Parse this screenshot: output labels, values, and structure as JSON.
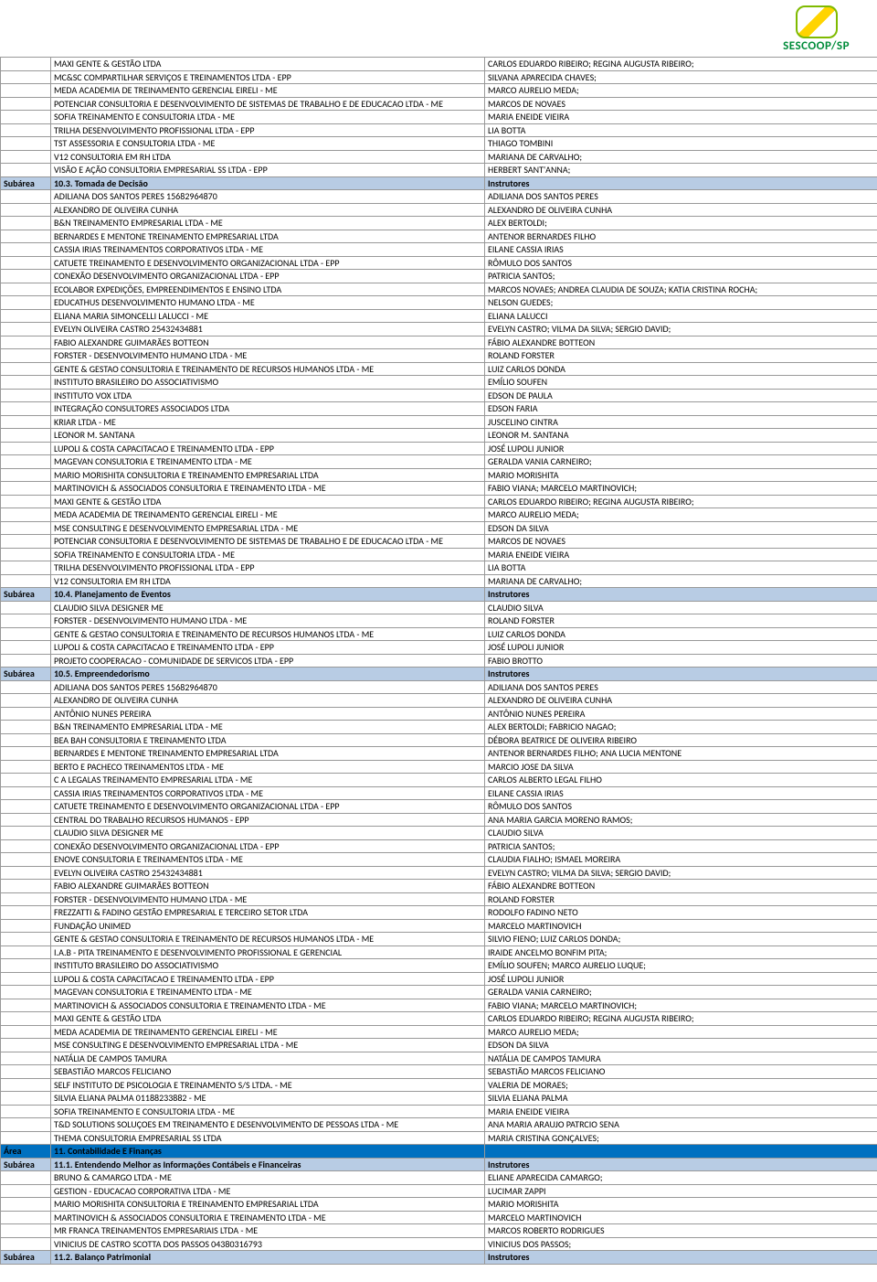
{
  "logo_text": "SESCOOP/SP",
  "colors": {
    "subarea_bg": "#b8cce4",
    "area_bg": "#0070c0",
    "border": "#999999"
  },
  "labels": {
    "subarea": "Subárea",
    "area": "Área",
    "instrutores": "Instrutores"
  },
  "sections": [
    {
      "type": "rows",
      "rows": [
        [
          "MAXI GENTE & GESTÃO LTDA",
          "CARLOS EDUARDO RIBEIRO; REGINA AUGUSTA RIBEIRO;"
        ],
        [
          "MC&SC COMPARTILHAR SERVIÇOS E TREINAMENTOS LTDA - EPP",
          "SILVANA APARECIDA CHAVES;"
        ],
        [
          "MEDA ACADEMIA DE TREINAMENTO GERENCIAL EIRELI - ME",
          "MARCO AURELIO MEDA;"
        ],
        [
          "POTENCIAR CONSULTORIA E DESENVOLVIMENTO DE SISTEMAS DE TRABALHO E DE EDUCACAO LTDA - ME",
          "MARCOS DE NOVAES"
        ],
        [
          "SOFIA TREINAMENTO E CONSULTORIA LTDA - ME",
          "MARIA ENEIDE VIEIRA"
        ],
        [
          "TRILHA DESENVOLVIMENTO PROFISSIONAL LTDA - EPP",
          "LIA BOTTA"
        ],
        [
          "TST ASSESSORIA E CONSULTORIA LTDA - ME",
          "THIAGO TOMBINI"
        ],
        [
          "V12 CONSULTORIA EM RH LTDA",
          "MARIANA DE CARVALHO;"
        ],
        [
          "VISÃO E AÇÃO CONSULTORIA EMPRESARIAL SS LTDA - EPP",
          "HERBERT SANT'ANNA;"
        ]
      ]
    },
    {
      "type": "subarea",
      "title": "10.3. Tomada de Decisão",
      "rows": [
        [
          "ADILIANA DOS SANTOS PERES 15682964870",
          "ADILIANA DOS SANTOS PERES"
        ],
        [
          "ALEXANDRO DE OLIVEIRA CUNHA",
          "ALEXANDRO DE OLIVEIRA CUNHA"
        ],
        [
          "B&N TREINAMENTO EMPRESARIAL LTDA - ME",
          "ALEX BERTOLDI;"
        ],
        [
          "BERNARDES E MENTONE TREINAMENTO EMPRESARIAL LTDA",
          "ANTENOR BERNARDES FILHO"
        ],
        [
          "CASSIA IRIAS TREINAMENTOS CORPORATIVOS LTDA - ME",
          "EILANE CASSIA IRIAS"
        ],
        [
          "CATUETE TREINAMENTO E DESENVOLVIMENTO ORGANIZACIONAL LTDA - EPP",
          "RÔMULO DOS SANTOS"
        ],
        [
          "CONEXÃO DESENVOLVIMENTO ORGANIZACIONAL LTDA - EPP",
          "PATRICIA SANTOS;"
        ],
        [
          "ECOLABOR EXPEDIÇÕES, EMPREENDIMENTOS E ENSINO LTDA",
          "MARCOS NOVAES; ANDREA CLAUDIA DE SOUZA; KATIA CRISTINA ROCHA;"
        ],
        [
          "EDUCATHUS DESENVOLVIMENTO HUMANO LTDA - ME",
          "NELSON GUEDES;"
        ],
        [
          "ELIANA MARIA SIMONCELLI LALUCCI - ME",
          "ELIANA LALUCCI"
        ],
        [
          "EVELYN OLIVEIRA CASTRO 25432434881",
          "EVELYN CASTRO; VILMA DA SILVA; SERGIO DAVID;"
        ],
        [
          "FABIO ALEXANDRE GUIMARÃES BOTTEON",
          "FÁBIO ALEXANDRE BOTTEON"
        ],
        [
          "FORSTER - DESENVOLVIMENTO HUMANO LTDA - ME",
          "ROLAND FORSTER"
        ],
        [
          "GENTE & GESTAO CONSULTORIA E TREINAMENTO DE RECURSOS HUMANOS LTDA - ME",
          "LUIZ CARLOS DONDA"
        ],
        [
          "INSTITUTO BRASILEIRO DO ASSOCIATIVISMO",
          "EMÍLIO SOUFEN"
        ],
        [
          "INSTITUTO VOX LTDA",
          "EDSON DE PAULA"
        ],
        [
          "INTEGRAÇÃO CONSULTORES ASSOCIADOS LTDA",
          "EDSON FARIA"
        ],
        [
          "KRIAR LTDA - ME",
          "JUSCELINO CINTRA"
        ],
        [
          "LEONOR M. SANTANA",
          "LEONOR M. SANTANA"
        ],
        [
          "LUPOLI & COSTA CAPACITACAO E TREINAMENTO LTDA - EPP",
          "JOSÉ LUPOLI JUNIOR"
        ],
        [
          "MAGEVAN CONSULTORIA E TREINAMENTO LTDA - ME",
          "GERALDA VANIA CARNEIRO;"
        ],
        [
          "MARIO MORISHITA CONSULTORIA E TREINAMENTO EMPRESARIAL LTDA",
          "MARIO MORISHITA"
        ],
        [
          "MARTINOVICH & ASSOCIADOS CONSULTORIA E TREINAMENTO LTDA - ME",
          "FABIO VIANA; MARCELO MARTINOVICH;"
        ],
        [
          "MAXI GENTE & GESTÃO LTDA",
          "CARLOS EDUARDO RIBEIRO; REGINA AUGUSTA RIBEIRO;"
        ],
        [
          "MEDA ACADEMIA DE TREINAMENTO GERENCIAL EIRELI - ME",
          "MARCO AURELIO MEDA;"
        ],
        [
          "MSE CONSULTING E DESENVOLVIMENTO EMPRESARIAL LTDA - ME",
          "EDSON DA SILVA"
        ],
        [
          "POTENCIAR CONSULTORIA E DESENVOLVIMENTO DE SISTEMAS DE TRABALHO E DE EDUCACAO LTDA - ME",
          "MARCOS DE NOVAES"
        ],
        [
          "SOFIA TREINAMENTO E CONSULTORIA LTDA - ME",
          "MARIA ENEIDE VIEIRA"
        ],
        [
          "TRILHA DESENVOLVIMENTO PROFISSIONAL LTDA - EPP",
          "LIA BOTTA"
        ],
        [
          "V12 CONSULTORIA EM RH LTDA",
          "MARIANA DE CARVALHO;"
        ]
      ]
    },
    {
      "type": "subarea",
      "title": "10.4. Planejamento de Eventos",
      "rows": [
        [
          "CLAUDIO SILVA DESIGNER ME",
          "CLAUDIO SILVA"
        ],
        [
          "FORSTER - DESENVOLVIMENTO HUMANO LTDA - ME",
          "ROLAND FORSTER"
        ],
        [
          "GENTE & GESTAO CONSULTORIA E TREINAMENTO DE RECURSOS HUMANOS LTDA - ME",
          "LUIZ CARLOS DONDA"
        ],
        [
          "LUPOLI & COSTA CAPACITACAO E TREINAMENTO LTDA - EPP",
          "JOSÉ LUPOLI JUNIOR"
        ],
        [
          "PROJETO COOPERACAO - COMUNIDADE DE SERVICOS LTDA - EPP",
          "FABIO BROTTO"
        ]
      ]
    },
    {
      "type": "subarea",
      "title": "10.5. Empreendedorismo",
      "rows": [
        [
          "ADILIANA DOS SANTOS PERES 15682964870",
          "ADILIANA DOS SANTOS PERES"
        ],
        [
          "ALEXANDRO DE OLIVEIRA CUNHA",
          "ALEXANDRO DE OLIVEIRA CUNHA"
        ],
        [
          "ANTÔNIO NUNES PEREIRA",
          "ANTÔNIO NUNES PEREIRA"
        ],
        [
          "B&N TREINAMENTO EMPRESARIAL LTDA - ME",
          "ALEX BERTOLDI; FABRICIO NAGAO;"
        ],
        [
          "BEA BAH CONSULTORIA E TREINAMENTO LTDA",
          "DÉBORA BEATRICE DE OLIVEIRA RIBEIRO"
        ],
        [
          "BERNARDES E MENTONE TREINAMENTO EMPRESARIAL LTDA",
          "ANTENOR BERNARDES FILHO; ANA LUCIA MENTONE"
        ],
        [
          "BERTO E PACHECO TREINAMENTOS LTDA - ME",
          "MARCIO JOSE DA SILVA"
        ],
        [
          "C A LEGALAS TREINAMENTO EMPRESARIAL LTDA - ME",
          "CARLOS ALBERTO LEGAL FILHO"
        ],
        [
          "CASSIA IRIAS TREINAMENTOS CORPORATIVOS LTDA - ME",
          "EILANE CASSIA IRIAS"
        ],
        [
          "CATUETE TREINAMENTO E DESENVOLVIMENTO ORGANIZACIONAL LTDA - EPP",
          "RÔMULO DOS SANTOS"
        ],
        [
          "CENTRAL DO TRABALHO RECURSOS HUMANOS - EPP",
          "ANA MARIA GARCIA MORENO RAMOS;"
        ],
        [
          "CLAUDIO SILVA DESIGNER ME",
          "CLAUDIO SILVA"
        ],
        [
          "CONEXÃO DESENVOLVIMENTO ORGANIZACIONAL LTDA - EPP",
          "PATRICIA SANTOS;"
        ],
        [
          "ENOVE CONSULTORIA E TREINAMENTOS LTDA - ME",
          "CLAUDIA FIALHO; ISMAEL MOREIRA"
        ],
        [
          "EVELYN OLIVEIRA CASTRO 25432434881",
          "EVELYN CASTRO; VILMA DA SILVA; SERGIO DAVID;"
        ],
        [
          "FABIO ALEXANDRE GUIMARÃES BOTTEON",
          "FÁBIO ALEXANDRE BOTTEON"
        ],
        [
          "FORSTER - DESENVOLVIMENTO HUMANO LTDA - ME",
          "ROLAND FORSTER"
        ],
        [
          "FREZZATTI & FADINO GESTÃO EMPRESARIAL E TERCEIRO SETOR LTDA",
          "RODOLFO FADINO NETO"
        ],
        [
          "FUNDAÇÃO UNIMED",
          "MARCELO MARTINOVICH"
        ],
        [
          "GENTE & GESTAO CONSULTORIA E TREINAMENTO DE RECURSOS HUMANOS LTDA - ME",
          "SILVIO FIENO; LUIZ CARLOS DONDA;"
        ],
        [
          "I.A.B - PITA TREINAMENTO E DESENVOLVIMENTO PROFISSIONAL E GERENCIAL",
          "IRAIDE ANCELMO BONFIM PITA;"
        ],
        [
          "INSTITUTO BRASILEIRO DO ASSOCIATIVISMO",
          "EMÍLIO SOUFEN; MARCO AURELIO LUQUE;"
        ],
        [
          "LUPOLI & COSTA CAPACITACAO E TREINAMENTO LTDA - EPP",
          "JOSÉ LUPOLI JUNIOR"
        ],
        [
          "MAGEVAN CONSULTORIA E TREINAMENTO LTDA - ME",
          "GERALDA VANIA CARNEIRO;"
        ],
        [
          "MARTINOVICH & ASSOCIADOS CONSULTORIA E TREINAMENTO LTDA - ME",
          "FABIO VIANA; MARCELO MARTINOVICH;"
        ],
        [
          "MAXI GENTE & GESTÃO LTDA",
          "CARLOS EDUARDO RIBEIRO; REGINA AUGUSTA RIBEIRO;"
        ],
        [
          "MEDA ACADEMIA DE TREINAMENTO GERENCIAL EIRELI - ME",
          "MARCO AURELIO MEDA;"
        ],
        [
          "MSE CONSULTING E DESENVOLVIMENTO EMPRESARIAL LTDA - ME",
          "EDSON DA SILVA"
        ],
        [
          "NATÁLIA DE CAMPOS TAMURA",
          "NATÁLIA DE CAMPOS TAMURA"
        ],
        [
          "SEBASTIÃO MARCOS FELICIANO",
          "SEBASTIÃO MARCOS FELICIANO"
        ],
        [
          "SELF INSTITUTO DE PSICOLOGIA E TREINAMENTO S/S LTDA. - ME",
          "VALERIA DE MORAES;"
        ],
        [
          "SILVIA ELIANA PALMA 01188233882 - ME",
          "SILVIA ELIANA PALMA"
        ],
        [
          "SOFIA TREINAMENTO E CONSULTORIA LTDA - ME",
          "MARIA ENEIDE VIEIRA"
        ],
        [
          "T&D SOLUTIONS SOLUÇOES EM TREINAMENTO E DESENVOLVIMENTO DE PESSOAS LTDA - ME",
          "ANA MARIA ARAUJO PATRCIO SENA"
        ],
        [
          "THEMA CONSULTORIA EMPRESARIAL SS LTDA",
          "MARIA CRISTINA GONÇALVES;"
        ]
      ]
    },
    {
      "type": "area",
      "title": "11. Contabilidade E Finanças"
    },
    {
      "type": "subarea",
      "title": "11.1. Entendendo Melhor as Informações Contábeis e Financeiras",
      "rows": [
        [
          "BRUNO & CAMARGO LTDA - ME",
          "ELIANE APARECIDA CAMARGO;"
        ],
        [
          "GESTION - EDUCACAO CORPORATIVA LTDA - ME",
          "LUCIMAR ZAPPI"
        ],
        [
          "MARIO MORISHITA CONSULTORIA E TREINAMENTO EMPRESARIAL LTDA",
          "MARIO MORISHITA"
        ],
        [
          "MARTINOVICH & ASSOCIADOS CONSULTORIA E TREINAMENTO LTDA - ME",
          "MARCELO MARTINOVICH"
        ],
        [
          "MR FRANCA TREINAMENTOS EMPRESARIAIS LTDA - ME",
          "MARCOS ROBERTO RODRIGUES"
        ],
        [
          "VINICIUS DE CASTRO SCOTTA DOS PASSOS 04380316793",
          "VINICIUS DOS PASSOS;"
        ]
      ]
    },
    {
      "type": "subarea",
      "title": "11.2. Balanço Patrimonial",
      "rows": []
    }
  ]
}
